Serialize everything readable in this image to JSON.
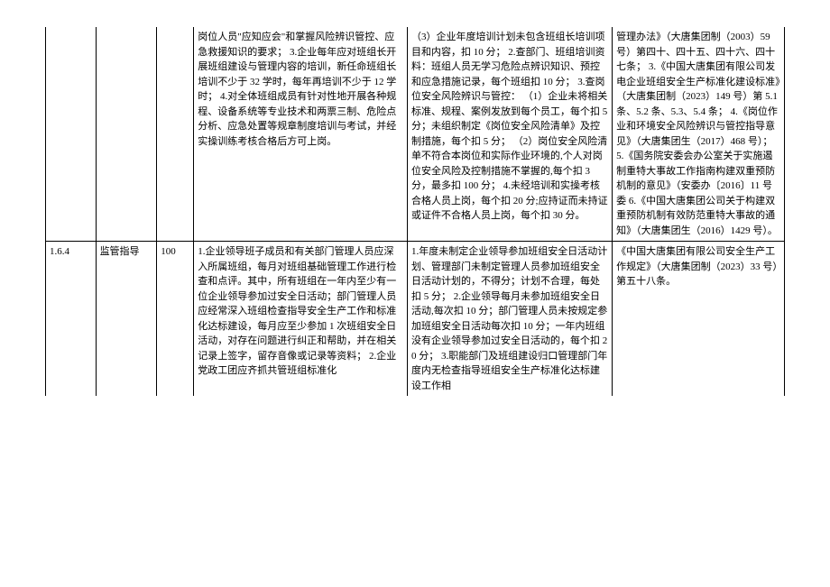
{
  "row1": {
    "col4": "岗位人员\"应知应会\"和掌握风险辨识管控、应急救援知识的要求；\n3.企业每年应对班组长开展班组建设与管理内容的培训，新任命班组长培训不少于 32 学时，每年再培训不少于 12 学时；\n4.对全体班组成员有针对性地开展各种规程、设备系统等专业技术和两票三制、危险点分析、应急处置等规章制度培训与考试，并经实操训练考核合格后方可上岗。",
    "col5": "（3）企业年度培训计划未包含班组长培训项目和内容，扣 10 分；\n2.查部门、班组培训资料：班组人员无学习危险点辨识知识、预控和应急措施记录，每个班组扣 10 分；\n3.查岗位安全风险辨识与管控：\n（1）企业未将相关标准、规程、案例发放到每个员工，每个扣 5 分；未组织制定《岗位安全风险清单》及控制措施，每个扣 5 分；\n（2）岗位安全风险清单不符合本岗位和实际作业环境的,个人对岗位安全风险及控制措施不掌握的,每个扣 3 分，最多扣 100 分；\n4.未经培训和实操考核合格人员上岗，每个扣 20 分;应持证而未持证或证件不合格人员上岗，每个扣 30 分。",
    "col6": "管理办法》（大唐集团制（2003）59 号）第四十、四十五、四十六、四十七条；\n3.《中国大唐集团有限公司发电企业班组安全生产标准化建设标准》（大唐集团制（2023）149 号）第 5.1 条、5.2 条、5.3、5.4 条；\n4.《岗位作业和环境安全风险辨识与管控指导意见》（大唐集团生（2017）468 号）；\n5.《国务院安委会办公室关于实施遏制重特大事故工作指南构建双重预防机制的意见》（安委办〔2016〕11 号委\n6.《中国大唐集团公司关于构建双重预防机制有效防范重特大事故的通知》（大唐集团生（2016）1429 号）。"
  },
  "row2": {
    "num": "1.6.4",
    "name": "监管指导",
    "score": "100",
    "col4": "1.企业领导班子成员和有关部门管理人员应深入所属班组，每月对班组基础管理工作进行检查和点评。其中，所有班组在一年内至少有一位企业领导参加过安全日活动；部门管理人员应经常深入班组检查指导安全生产工作和标准化达标建设，每月应至少参加 1 次班组安全日活动，对存在问题进行纠正和帮助，并在相关记录上签字，留存音像或记录等资料；\n2.企业党政工团应齐抓共管班组标准化",
    "col5": "1.年度未制定企业领导参加班组安全日活动计划、管理部门未制定管理人员参加班组安全日活动计划的，不得分；计划不合理，每处扣 5 分；\n2.企业领导每月未参加班组安全日活动,每次扣 10 分；部门管理人员未按规定参加班组安全日活动每次扣 10 分；一年内班组没有企业领导参加过安全日活动的，每个扣 20 分；\n3.职能部门及班组建设归口管理部门年度内无检查指导班组安全生产标准化达标建设工作相",
    "col6": "《中国大唐集团有限公司安全生产工作规定》（大唐集团制（2023）33 号）第五十八条。"
  }
}
